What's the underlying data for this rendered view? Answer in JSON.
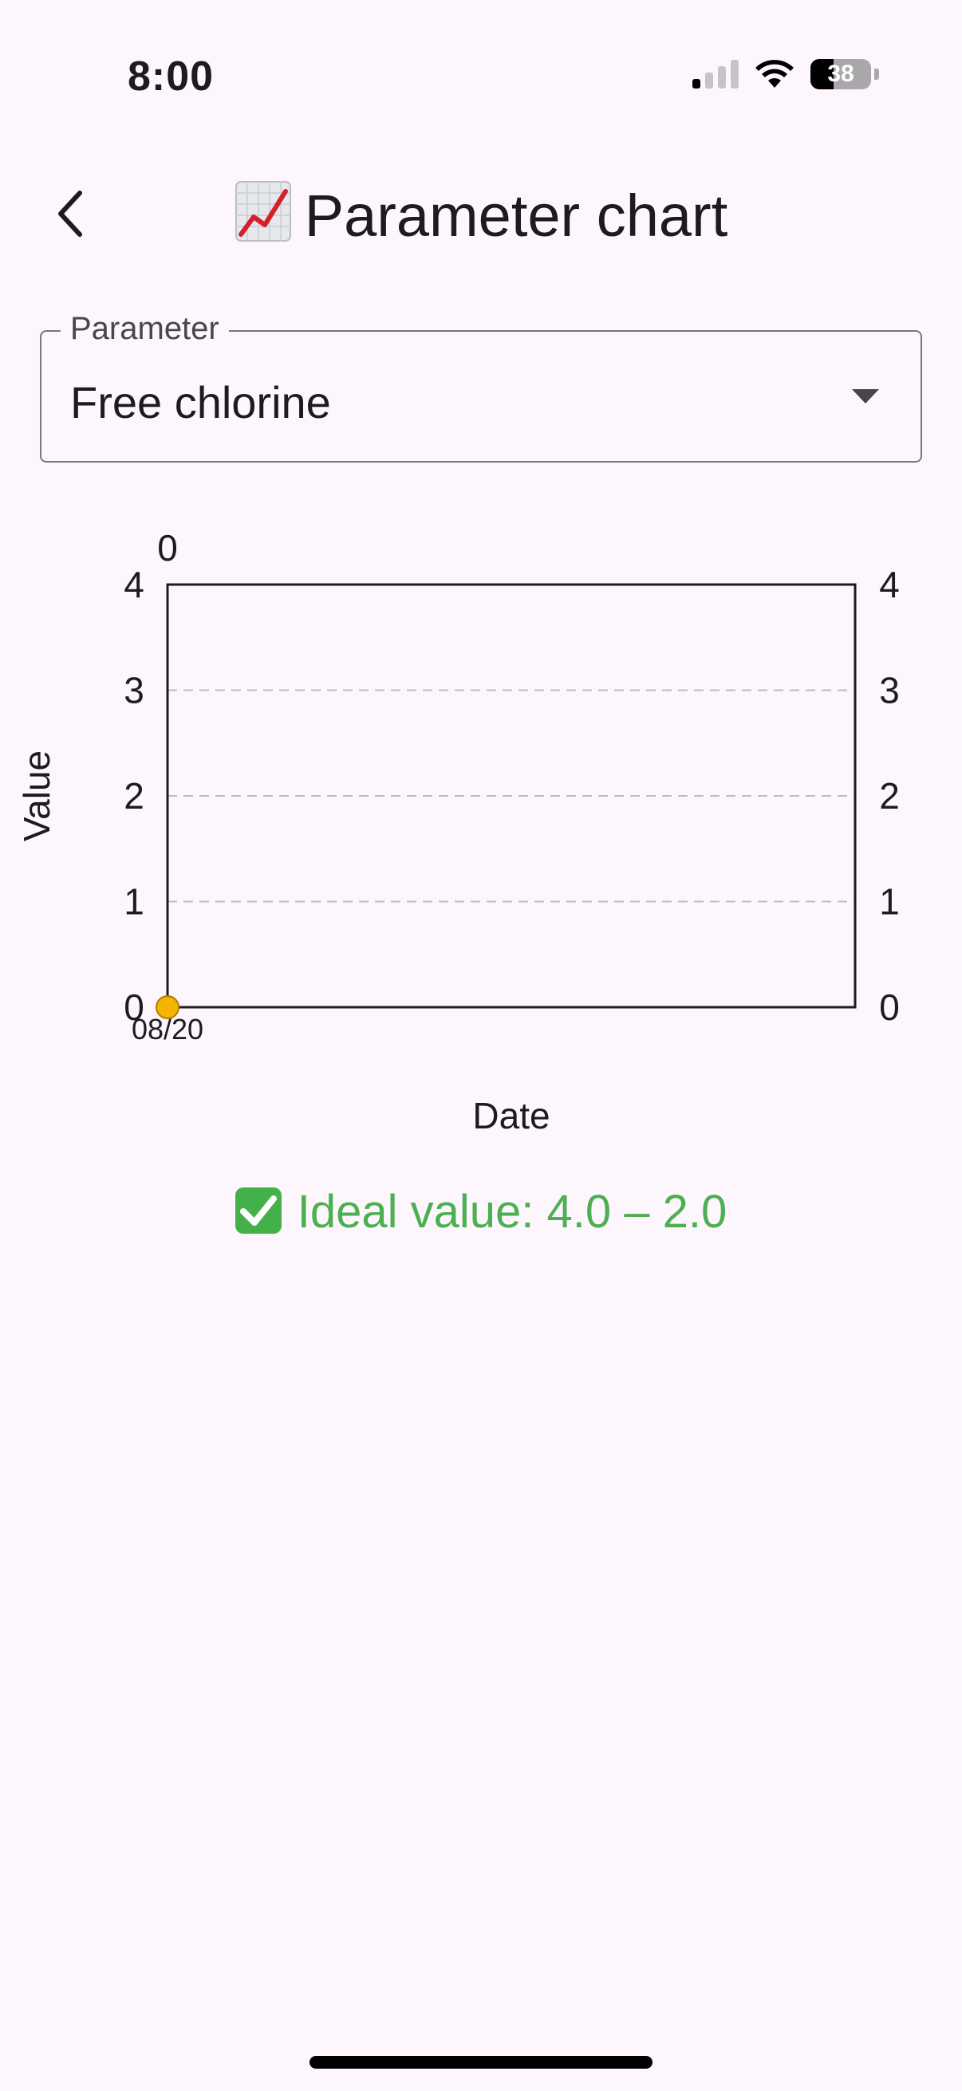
{
  "status_bar": {
    "time": "8:00",
    "battery": "38",
    "battery_level": 0.38,
    "icons": [
      "signal-icon",
      "wifi-icon",
      "battery-icon"
    ]
  },
  "app_bar": {
    "title": "Parameter chart",
    "title_icon": "chart-increasing-emoji",
    "back_icon": "chevron-left-icon"
  },
  "parameter_select": {
    "label": "Parameter",
    "value": "Free chlorine",
    "icon": "dropdown-arrow-icon"
  },
  "chart_data": {
    "type": "scatter",
    "title": "",
    "xlabel": "Date",
    "ylabel": "Value",
    "top_label": "0",
    "ylim": [
      0,
      4
    ],
    "yticks": [
      "0",
      "1",
      "2",
      "3",
      "4"
    ],
    "xticks": [
      "08/20"
    ],
    "grid": "horizontal-dashed",
    "secondary_y_axis": true,
    "points": [
      {
        "x": "08/20",
        "y": 0
      }
    ],
    "point_color": "#f4b400"
  },
  "ideal": {
    "icon": "check-mark-button-icon",
    "text": "Ideal value: 4.0 – 2.0",
    "color": "#4caf50"
  }
}
